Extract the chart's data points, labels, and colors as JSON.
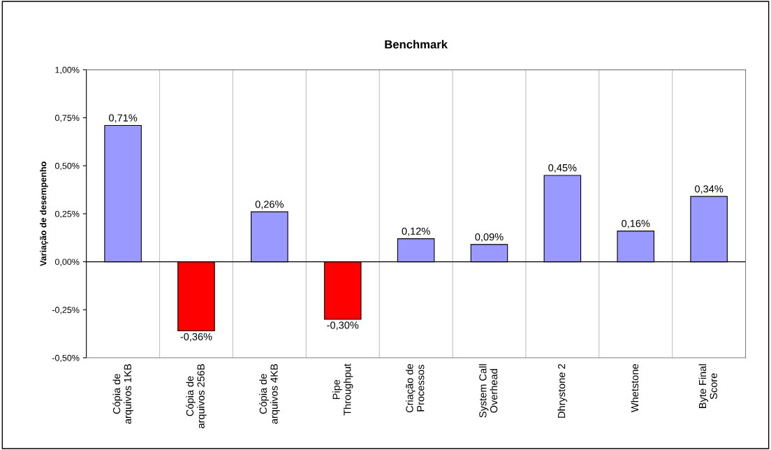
{
  "chart_data": {
    "type": "bar",
    "title": "Benchmark",
    "ylabel": "Variação de desempenho",
    "categories": [
      "Cópia de\narquivos 1KB",
      "Cópia de\narquivos 256B",
      "Cópia de\narquivos 4KB",
      "Pipe\nThroughput",
      "Criação de\nProcessos",
      "System Call\nOverhead",
      "Dhrystone 2",
      "Whetstone",
      "Byte Final\nScore"
    ],
    "values": [
      0.71,
      -0.36,
      0.26,
      -0.3,
      0.12,
      0.09,
      0.45,
      0.16,
      0.34
    ],
    "colors": [
      "#9999ff",
      "#ff0000",
      "#9999ff",
      "#ff0000",
      "#9999ff",
      "#9999ff",
      "#9999ff",
      "#9999ff",
      "#9999ff"
    ],
    "value_labels": [
      "0,71%",
      "-0,36%",
      "0,26%",
      "-0,30%",
      "0,12%",
      "0,09%",
      "0,45%",
      "0,16%",
      "0,34%"
    ],
    "ylim": [
      -0.5,
      1.0
    ],
    "yticks": [
      {
        "value": -0.5,
        "label": "-0,50%"
      },
      {
        "value": -0.25,
        "label": "-0,25%"
      },
      {
        "value": 0,
        "label": "0,00%"
      },
      {
        "value": 0.25,
        "label": "0,25%"
      },
      {
        "value": 0.5,
        "label": "0,50%"
      },
      {
        "value": 0.75,
        "label": "0,75%"
      },
      {
        "value": 1.0,
        "label": "1,00%"
      }
    ],
    "grid": "x",
    "legend": false
  }
}
